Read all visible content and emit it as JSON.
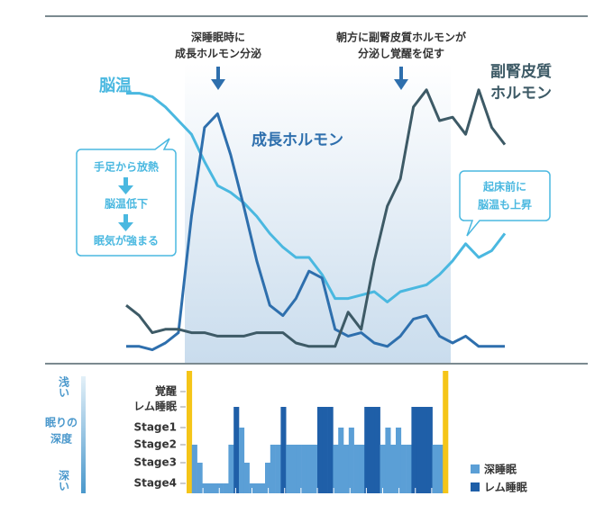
{
  "chart_data": [
    {
      "type": "line",
      "x": [
        0,
        1,
        2,
        3,
        4,
        5,
        6,
        7,
        8,
        9,
        10,
        11,
        12,
        13,
        14,
        15,
        16,
        17,
        18,
        19,
        20,
        21,
        22,
        23,
        24,
        25,
        26,
        27,
        28,
        29
      ],
      "xlim": [
        0,
        29
      ],
      "ylim": [
        0,
        100
      ],
      "series": [
        {
          "name": "脳温",
          "color": "#4ab8e0",
          "values": [
            78,
            78,
            77,
            74,
            70,
            66,
            58,
            51,
            49,
            46,
            42,
            37,
            33,
            30,
            30,
            25,
            18,
            18,
            19,
            20,
            17,
            20,
            21,
            22,
            25,
            29,
            34,
            30,
            32,
            37
          ]
        },
        {
          "name": "成長ホルモン",
          "color": "#2e6fad",
          "values": [
            4,
            4,
            3,
            5,
            8,
            42,
            68,
            72,
            60,
            45,
            29,
            16,
            13,
            18,
            26,
            24,
            9,
            7,
            8,
            5,
            4,
            7,
            12,
            13,
            7,
            5,
            7,
            4,
            4,
            4
          ]
        },
        {
          "name": [
            "副腎皮質",
            "ホルモン"
          ],
          "color": "#3d5a66",
          "values": [
            16,
            13,
            8,
            9,
            9,
            8,
            8,
            7,
            7,
            7,
            8,
            8,
            8,
            5,
            4,
            4,
            4,
            14,
            9,
            29,
            45,
            53,
            74,
            79,
            70,
            71,
            66,
            79,
            68,
            63
          ]
        }
      ],
      "annotations": [
        {
          "lines": [
            "深睡眠時に",
            "成長ホルモン分泌"
          ]
        },
        {
          "lines": [
            "朝方に副腎皮質ホルモンが",
            "分泌し覚醒を促す"
          ]
        },
        {
          "lines": [
            "手足から放熱",
            "脳温低下",
            "眠気が強まる"
          ]
        },
        {
          "lines": [
            "起床前に",
            "脳温も上昇"
          ]
        }
      ]
    },
    {
      "type": "hypnogram",
      "levels": [
        "覚醒",
        "レム睡眠",
        "Stage1",
        "Stage2",
        "Stage3",
        "Stage4"
      ],
      "values": [
        0,
        3,
        4,
        5,
        5,
        5,
        5,
        5,
        3,
        1,
        2,
        4,
        5,
        5,
        5,
        4,
        3,
        3,
        1,
        3,
        3,
        3,
        3,
        3,
        3,
        1,
        1,
        1,
        3,
        2,
        3,
        2,
        3,
        3,
        1,
        1,
        1,
        3,
        2,
        3,
        2,
        3,
        3,
        1,
        1,
        1,
        1,
        3,
        3,
        0
      ],
      "wake_color": "#f5c518",
      "series": [
        {
          "name": "深睡眠",
          "color": "#5b9fd6"
        },
        {
          "name": "レム睡眠",
          "color": "#1f5fa8"
        }
      ],
      "depth_label": {
        "top": "浅い",
        "middle": [
          "眠りの",
          "深度"
        ],
        "bottom": "深い"
      }
    }
  ]
}
